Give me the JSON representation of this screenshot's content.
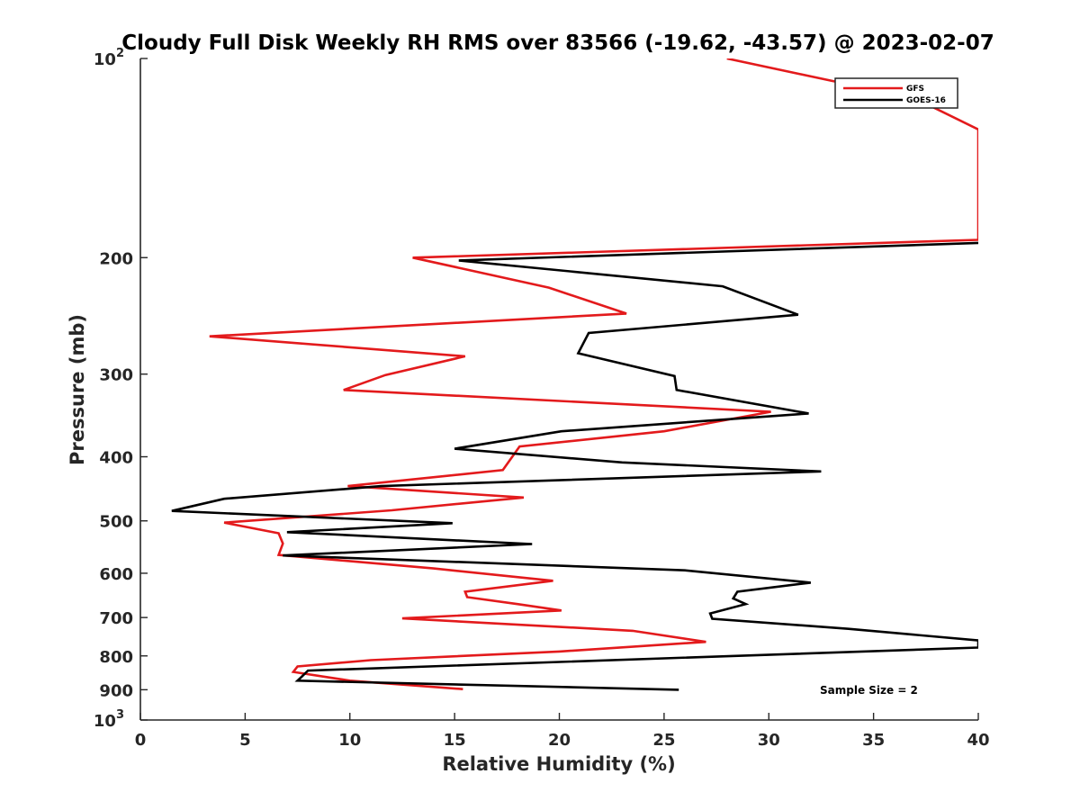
{
  "chart_data": {
    "type": "line",
    "title": "Cloudy Full Disk Weekly RH RMS over 83566 (-19.62, -43.57) @ 2023-02-07",
    "xlabel": "Relative Humidity (%)",
    "ylabel": "Pressure (mb)",
    "xlim": [
      0,
      40
    ],
    "ylim": [
      100,
      1000
    ],
    "y_scale": "log",
    "y_reversed": true,
    "grid": false,
    "legend_position": "top-right",
    "x_ticks": [
      "0",
      "5",
      "10",
      "15",
      "20",
      "25",
      "30",
      "35",
      "40"
    ],
    "y_ticks": [
      {
        "value": 100,
        "label": "10",
        "sup": "2"
      },
      {
        "value": 200,
        "label": "200",
        "sup": ""
      },
      {
        "value": 300,
        "label": "300",
        "sup": ""
      },
      {
        "value": 400,
        "label": "400",
        "sup": ""
      },
      {
        "value": 500,
        "label": "500",
        "sup": ""
      },
      {
        "value": 600,
        "label": "600",
        "sup": ""
      },
      {
        "value": 700,
        "label": "700",
        "sup": ""
      },
      {
        "value": 800,
        "label": "800",
        "sup": ""
      },
      {
        "value": 900,
        "label": "900",
        "sup": ""
      },
      {
        "value": 1000,
        "label": "10",
        "sup": "3"
      }
    ],
    "annotation": "Sample Size = 2",
    "series": [
      {
        "name": "GFS",
        "color": "#e31a1c",
        "points": [
          [
            28,
            100
          ],
          [
            37,
            115
          ],
          [
            40,
            128
          ],
          [
            40,
            188
          ],
          [
            13,
            200
          ],
          [
            19.5,
            222
          ],
          [
            23.2,
            243
          ],
          [
            3.3,
            263
          ],
          [
            15.5,
            282
          ],
          [
            11.7,
            301
          ],
          [
            9.7,
            317
          ],
          [
            30.1,
            342
          ],
          [
            25,
            366
          ],
          [
            18.1,
            386
          ],
          [
            17.3,
            419
          ],
          [
            9.9,
            443
          ],
          [
            18.3,
            461
          ],
          [
            12,
            482
          ],
          [
            4,
            503
          ],
          [
            6.6,
            522
          ],
          [
            6.8,
            541
          ],
          [
            6.6,
            563
          ],
          [
            14,
            590
          ],
          [
            19.7,
            616
          ],
          [
            15.5,
            640
          ],
          [
            15.6,
            652
          ],
          [
            18,
            668
          ],
          [
            20.1,
            683
          ],
          [
            12.5,
            702
          ],
          [
            23.5,
            733
          ],
          [
            27,
            762
          ],
          [
            20,
            788
          ],
          [
            11,
            812
          ],
          [
            7.5,
            830
          ],
          [
            7.3,
            846
          ],
          [
            10,
            872
          ],
          [
            15.4,
            898
          ]
        ]
      },
      {
        "name": "GOES-16",
        "color": "#000000",
        "points": [
          [
            40,
            190
          ],
          [
            15.2,
            202
          ],
          [
            27.8,
            221
          ],
          [
            31.4,
            244
          ],
          [
            21.4,
            260
          ],
          [
            20.9,
            279
          ],
          [
            25.5,
            302
          ],
          [
            25.6,
            317
          ],
          [
            31.9,
            344
          ],
          [
            20.1,
            366
          ],
          [
            15,
            389
          ],
          [
            23,
            408
          ],
          [
            32.5,
            421
          ],
          [
            11.5,
            443
          ],
          [
            4,
            463
          ],
          [
            1.5,
            483
          ],
          [
            14.9,
            504
          ],
          [
            7,
            520
          ],
          [
            18.7,
            542
          ],
          [
            6.8,
            564
          ],
          [
            26,
            594
          ],
          [
            32,
            620
          ],
          [
            28.5,
            640
          ],
          [
            28.3,
            655
          ],
          [
            28.9,
            668
          ],
          [
            27.2,
            690
          ],
          [
            27.3,
            703
          ],
          [
            33.8,
            728
          ],
          [
            40,
            758
          ],
          [
            40,
            777
          ],
          [
            8,
            842
          ],
          [
            7.7,
            860
          ],
          [
            7.5,
            872
          ],
          [
            25.7,
            900
          ]
        ]
      }
    ]
  }
}
